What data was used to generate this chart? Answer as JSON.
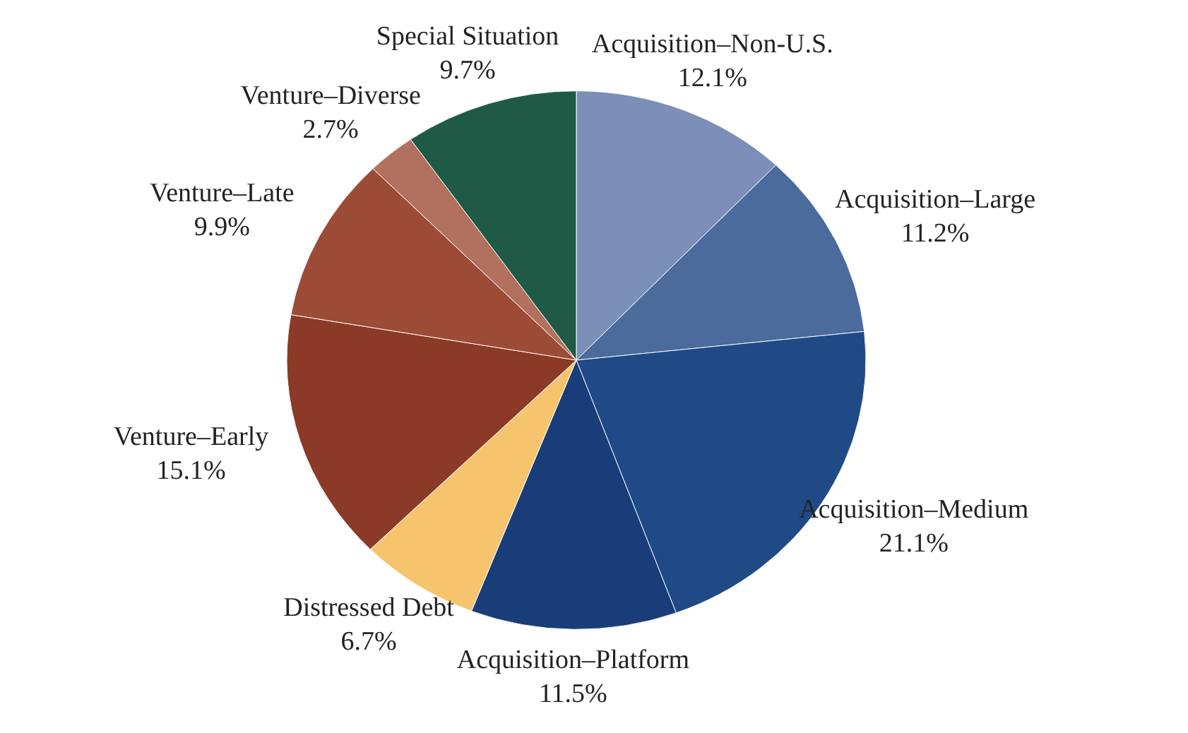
{
  "chart_data": {
    "type": "pie",
    "categories": [
      "Acquisition–Non-U.S.",
      "Acquisition–Large",
      "Acquisition–Medium",
      "Acquisition–Platform",
      "Distressed Debt",
      "Venture–Early",
      "Venture–Late",
      "Venture–Diverse",
      "Special Situation"
    ],
    "values": [
      12.1,
      11.2,
      21.1,
      11.5,
      6.7,
      15.1,
      9.9,
      2.7,
      9.7
    ],
    "colors": [
      "#7b8fb8",
      "#4a6b9c",
      "#1f4a86",
      "#183d78",
      "#f6c46c",
      "#8a3a26",
      "#9b4b36",
      "#b2705f",
      "#1f5a46"
    ],
    "value_labels": [
      "12.1%",
      "11.2%",
      "21.1%",
      "11.5%",
      "6.7%",
      "15.1%",
      "9.9%",
      "2.7%",
      "9.7%"
    ]
  }
}
